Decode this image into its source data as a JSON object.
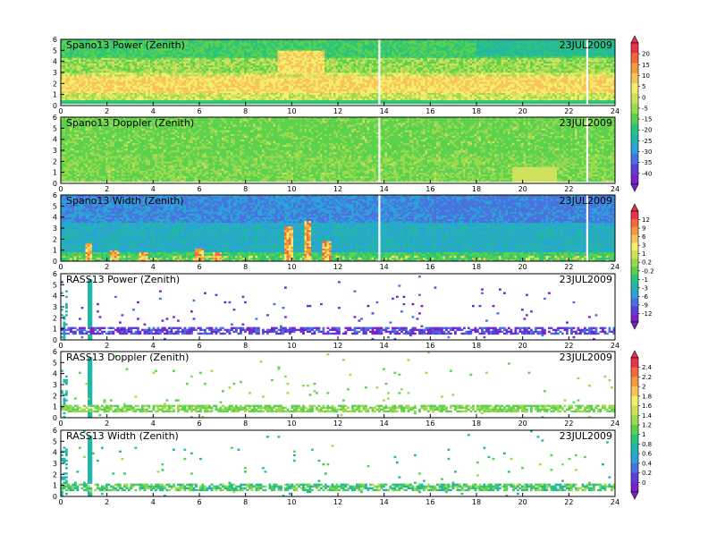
{
  "chart_data": [
    {
      "type": "heatmap",
      "title": "Spano13 Power (Zenith)",
      "date": "23JUL2009",
      "xlim": [
        0,
        24
      ],
      "ylim": [
        0,
        6
      ],
      "x_ticks": [
        "0",
        "2",
        "4",
        "6",
        "8",
        "10",
        "12",
        "14",
        "16",
        "18",
        "20",
        "22",
        "24"
      ],
      "y_ticks": [
        "0",
        "1",
        "2",
        "3",
        "4",
        "5",
        "6"
      ],
      "data_gaps_hours": [
        13.8,
        22.8
      ]
    },
    {
      "type": "heatmap",
      "title": "Spano13 Doppler (Zenith)",
      "date": "23JUL2009",
      "xlim": [
        0,
        24
      ],
      "ylim": [
        0,
        6
      ],
      "x_ticks": [
        "0",
        "2",
        "4",
        "6",
        "8",
        "10",
        "12",
        "14",
        "16",
        "18",
        "20",
        "22",
        "24"
      ],
      "y_ticks": [
        "0",
        "1",
        "2",
        "3",
        "4",
        "5",
        "6"
      ],
      "data_gaps_hours": [
        13.8,
        22.8
      ]
    },
    {
      "type": "heatmap",
      "title": "Spano13 Width (Zenith)",
      "date": "23JUL2009",
      "xlim": [
        0,
        24
      ],
      "ylim": [
        0,
        6
      ],
      "x_ticks": [
        "0",
        "2",
        "4",
        "6",
        "8",
        "10",
        "12",
        "14",
        "16",
        "18",
        "20",
        "22",
        "24"
      ],
      "y_ticks": [
        "0",
        "1",
        "2",
        "3",
        "4",
        "5",
        "6"
      ],
      "data_gaps_hours": [
        13.8,
        22.8
      ]
    },
    {
      "type": "heatmap",
      "title": "RASS13 Power (Zenith)",
      "date": "23JUL2009",
      "xlim": [
        0,
        24
      ],
      "ylim": [
        0,
        6
      ],
      "x_ticks": [
        "0",
        "2",
        "4",
        "6",
        "8",
        "10",
        "12",
        "14",
        "16",
        "18",
        "20",
        "22",
        "24"
      ],
      "y_ticks": [
        "0",
        "1",
        "2",
        "3",
        "4",
        "5",
        "6"
      ]
    },
    {
      "type": "heatmap",
      "title": "RASS13 Doppler (Zenith)",
      "date": "23JUL2009",
      "xlim": [
        0,
        24
      ],
      "ylim": [
        0,
        6
      ],
      "x_ticks": [
        "0",
        "2",
        "4",
        "6",
        "8",
        "10",
        "12",
        "14",
        "16",
        "18",
        "20",
        "22",
        "24"
      ],
      "y_ticks": [
        "0",
        "1",
        "2",
        "3",
        "4",
        "5",
        "6"
      ]
    },
    {
      "type": "heatmap",
      "title": "RASS13 Width (Zenith)",
      "date": "23JUL2009",
      "xlim": [
        0,
        24
      ],
      "ylim": [
        0,
        6
      ],
      "x_ticks": [
        "0",
        "2",
        "4",
        "6",
        "8",
        "10",
        "12",
        "14",
        "16",
        "18",
        "20",
        "22",
        "24"
      ],
      "y_ticks": [
        "0",
        "1",
        "2",
        "3",
        "4",
        "5",
        "6"
      ]
    }
  ],
  "colorbars": [
    {
      "labels": [
        "20",
        "15",
        "10",
        "5",
        "0",
        "-5",
        "-15",
        "-20",
        "-25",
        "-30",
        "-35",
        "-40"
      ],
      "colors": [
        "#e8314a",
        "#f06a3a",
        "#f49a3c",
        "#f7c35a",
        "#f4ee6a",
        "#cfe05c",
        "#9bd94f",
        "#5ad24e",
        "#2cc47a",
        "#22b6a6",
        "#2aa3d8",
        "#4a72de",
        "#5a3fd8",
        "#7a22c8"
      ]
    },
    {
      "labels": [
        "12",
        "9",
        "6",
        "3",
        "1",
        "0.2",
        "-0.2",
        "-1",
        "-3",
        "-6",
        "-9",
        "-12"
      ],
      "colors": [
        "#e8314a",
        "#f06a3a",
        "#f49a3c",
        "#f7c35a",
        "#f4ee6a",
        "#cfe05c",
        "#9bd94f",
        "#5ad24e",
        "#2cc47a",
        "#22b6a6",
        "#2aa3d8",
        "#4a72de",
        "#5a3fd8",
        "#7a22c8"
      ]
    },
    {
      "labels": [
        "2.4",
        "2.2",
        "2",
        "1.8",
        "1.6",
        "1.4",
        "1.2",
        "1",
        "0.8",
        "0.6",
        "0.4",
        "0.2",
        "0"
      ],
      "colors": [
        "#e8314a",
        "#f06a3a",
        "#f49a3c",
        "#f7c35a",
        "#f4ee6a",
        "#cfe05c",
        "#9bd94f",
        "#5ad24e",
        "#2cc47a",
        "#22b6a6",
        "#2aa3d8",
        "#4a72de",
        "#5a3fd8",
        "#7a22c8"
      ]
    }
  ]
}
